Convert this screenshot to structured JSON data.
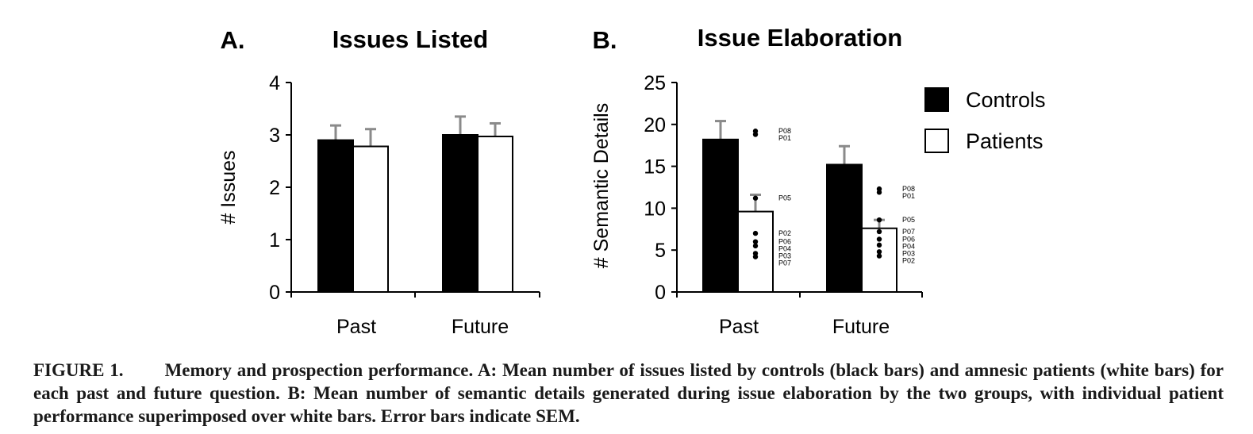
{
  "chart_data": [
    {
      "panel": "A.",
      "type": "bar",
      "title": "Issues Listed",
      "xlabel": "",
      "ylabel": "# Issues",
      "ylim": [
        0,
        4
      ],
      "yticks": [
        "0",
        "1",
        "2",
        "3",
        "4"
      ],
      "categories": [
        "Past",
        "Future"
      ],
      "grid": false,
      "series": [
        {
          "name": "Controls",
          "color": "#000000",
          "values": [
            2.9,
            3.0
          ],
          "sem": [
            0.28,
            0.35
          ]
        },
        {
          "name": "Patients",
          "color": "#ffffff",
          "values": [
            2.78,
            2.97
          ],
          "sem": [
            0.33,
            0.25
          ]
        }
      ]
    },
    {
      "panel": "B.",
      "type": "bar",
      "title": "Issue Elaboration",
      "xlabel": "",
      "ylabel": "# Semantic Details",
      "ylim": [
        0,
        25
      ],
      "yticks": [
        "0",
        "5",
        "10",
        "15",
        "20",
        "25"
      ],
      "categories": [
        "Past",
        "Future"
      ],
      "grid": false,
      "legend_position": "top-right",
      "series": [
        {
          "name": "Controls",
          "color": "#000000",
          "values": [
            18.2,
            15.2
          ],
          "sem": [
            2.2,
            2.2
          ]
        },
        {
          "name": "Patients",
          "color": "#ffffff",
          "values": [
            9.6,
            7.6
          ],
          "sem": [
            2.0,
            1.0
          ],
          "individual": [
            [
              {
                "id": "P08",
                "value": 19.2
              },
              {
                "id": "P01",
                "value": 18.8
              },
              {
                "id": "P05",
                "value": 11.2
              },
              {
                "id": "P02",
                "value": 7.0
              },
              {
                "id": "P06",
                "value": 6.0
              },
              {
                "id": "P04",
                "value": 5.5
              },
              {
                "id": "P03",
                "value": 4.6
              },
              {
                "id": "P07",
                "value": 4.2
              }
            ],
            [
              {
                "id": "P08",
                "value": 12.3
              },
              {
                "id": "P01",
                "value": 11.9
              },
              {
                "id": "P05",
                "value": 8.6
              },
              {
                "id": "P07",
                "value": 7.2
              },
              {
                "id": "P06",
                "value": 6.3
              },
              {
                "id": "P04",
                "value": 5.6
              },
              {
                "id": "P03",
                "value": 4.8
              },
              {
                "id": "P02",
                "value": 4.3
              }
            ]
          ]
        }
      ]
    }
  ],
  "legend": [
    {
      "label": "Controls",
      "color": "#000000"
    },
    {
      "label": "Patients",
      "color": "#ffffff"
    }
  ],
  "caption": {
    "label": "FIGURE 1.",
    "text": "Memory and prospection performance. A: Mean number of issues listed by controls (black bars) and amnesic patients (white bars) for each past and future question. B: Mean number of semantic details generated during issue elaboration by the two groups, with individual patient performance superimposed over white bars. Error bars indicate SEM."
  }
}
